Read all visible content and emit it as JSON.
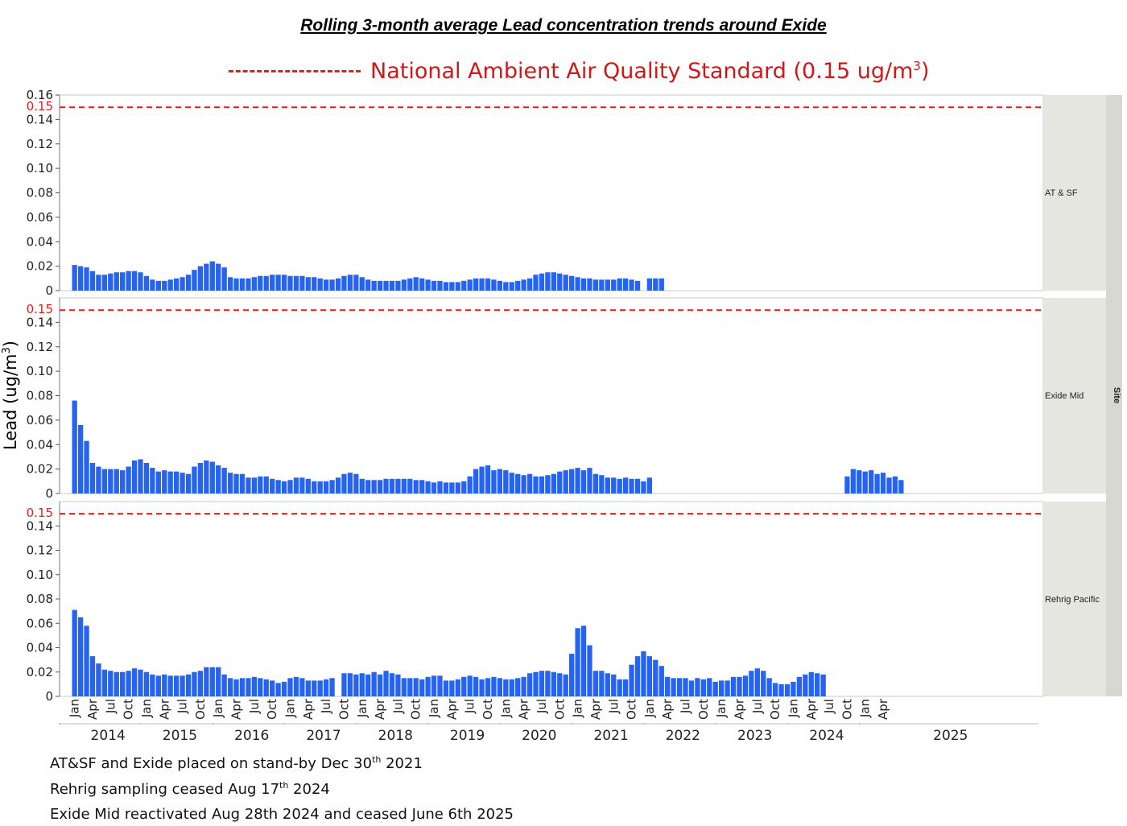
{
  "chart_data": {
    "type": "bar",
    "title": "Rolling 3-month average Lead concentration trends around Exide",
    "legend": {
      "reference_line_label": "National Ambient Air Quality Standard (0.15 ug/m",
      "reference_line_unit_sup": "3",
      "reference_line_close": ")"
    },
    "reference_line": {
      "value": 0.15,
      "label": "0.15",
      "style": "dashed",
      "color": "#e81c1c"
    },
    "ylabel": "Lead (ug/m",
    "ylabel_sup": "3",
    "ylabel_close": ")",
    "facet_label": "Site",
    "bar_color": "#2563f0",
    "panels": [
      {
        "name": "AT & SF",
        "ylim": [
          0,
          0.16
        ],
        "yticks": [
          "0",
          "0.02",
          "0.04",
          "0.06",
          "0.08",
          "0.10",
          "0.12",
          "0.14",
          "0.16"
        ],
        "start": "2014-01",
        "values": [
          0.021,
          0.02,
          0.019,
          0.016,
          0.013,
          0.013,
          0.014,
          0.015,
          0.015,
          0.016,
          0.016,
          0.015,
          0.012,
          0.009,
          0.008,
          0.008,
          0.009,
          0.01,
          0.011,
          0.013,
          0.017,
          0.02,
          0.022,
          0.024,
          0.022,
          0.019,
          0.011,
          0.01,
          0.01,
          0.01,
          0.011,
          0.012,
          0.012,
          0.013,
          0.013,
          0.013,
          0.012,
          0.012,
          0.012,
          0.011,
          0.011,
          0.01,
          0.009,
          0.009,
          0.01,
          0.012,
          0.013,
          0.013,
          0.011,
          0.009,
          0.008,
          0.008,
          0.008,
          0.008,
          0.008,
          0.009,
          0.01,
          0.011,
          0.01,
          0.009,
          0.008,
          0.008,
          0.007,
          0.007,
          0.007,
          0.008,
          0.009,
          0.01,
          0.01,
          0.01,
          0.009,
          0.008,
          0.007,
          0.007,
          0.008,
          0.009,
          0.01,
          0.013,
          0.014,
          0.015,
          0.015,
          0.014,
          0.013,
          0.012,
          0.011,
          0.01,
          0.01,
          0.009,
          0.009,
          0.009,
          0.009,
          0.01,
          0.01,
          0.009,
          0.008,
          null,
          0.01,
          0.01,
          0.01
        ]
      },
      {
        "name": "Exide Mid",
        "ylim": [
          0,
          0.16
        ],
        "yticks": [
          "0",
          "0.02",
          "0.04",
          "0.06",
          "0.08",
          "0.10",
          "0.12",
          "0.14"
        ],
        "start": "2014-01",
        "values": [
          0.076,
          0.056,
          0.043,
          0.025,
          0.022,
          0.02,
          0.02,
          0.02,
          0.019,
          0.022,
          0.027,
          0.028,
          0.025,
          0.021,
          0.018,
          0.019,
          0.018,
          0.018,
          0.017,
          0.016,
          0.022,
          0.025,
          0.027,
          0.026,
          0.023,
          0.021,
          0.017,
          0.016,
          0.016,
          0.013,
          0.013,
          0.014,
          0.014,
          0.012,
          0.011,
          0.01,
          0.011,
          0.013,
          0.013,
          0.012,
          0.01,
          0.01,
          0.01,
          0.011,
          0.013,
          0.016,
          0.017,
          0.016,
          0.012,
          0.011,
          0.011,
          0.011,
          0.012,
          0.012,
          0.012,
          0.012,
          0.012,
          0.011,
          0.011,
          0.01,
          0.009,
          0.01,
          0.009,
          0.009,
          0.009,
          0.01,
          0.014,
          0.02,
          0.022,
          0.023,
          0.019,
          0.02,
          0.019,
          0.017,
          0.016,
          0.015,
          0.016,
          0.014,
          0.014,
          0.015,
          0.016,
          0.018,
          0.019,
          0.02,
          0.021,
          0.019,
          0.021,
          0.016,
          0.015,
          0.013,
          0.013,
          0.012,
          0.013,
          0.012,
          0.012,
          0.01,
          0.013,
          null,
          null,
          null,
          null,
          null,
          null,
          null,
          null,
          null,
          null,
          null,
          null,
          null,
          null,
          null,
          null,
          null,
          null,
          null,
          null,
          null,
          null,
          null,
          null,
          null,
          null,
          null,
          null,
          null,
          null,
          null,
          null,
          0.014,
          0.02,
          0.019,
          0.018,
          0.019,
          0.016,
          0.017,
          0.013,
          0.014,
          0.011
        ]
      },
      {
        "name": "Rehrig Pacific",
        "ylim": [
          0,
          0.16
        ],
        "yticks": [
          "0",
          "0.02",
          "0.04",
          "0.06",
          "0.08",
          "0.10",
          "0.12",
          "0.14"
        ],
        "start": "2014-01",
        "values": [
          0.071,
          0.065,
          0.058,
          0.033,
          0.027,
          0.022,
          0.021,
          0.02,
          0.02,
          0.021,
          0.023,
          0.022,
          0.02,
          0.018,
          0.017,
          0.018,
          0.017,
          0.017,
          0.017,
          0.018,
          0.02,
          0.021,
          0.024,
          0.024,
          0.024,
          0.018,
          0.015,
          0.014,
          0.015,
          0.015,
          0.016,
          0.015,
          0.014,
          0.013,
          0.011,
          0.012,
          0.015,
          0.016,
          0.015,
          0.013,
          0.013,
          0.013,
          0.014,
          0.015,
          null,
          0.019,
          0.019,
          0.018,
          0.019,
          0.018,
          0.02,
          0.018,
          0.021,
          0.019,
          0.018,
          0.015,
          0.015,
          0.015,
          0.014,
          0.016,
          0.017,
          0.017,
          0.013,
          0.013,
          0.014,
          0.016,
          0.017,
          0.016,
          0.014,
          0.015,
          0.016,
          0.015,
          0.014,
          0.014,
          0.015,
          0.016,
          0.019,
          0.02,
          0.021,
          0.021,
          0.02,
          0.019,
          0.018,
          0.035,
          0.056,
          0.058,
          0.042,
          0.021,
          0.021,
          0.019,
          0.018,
          0.014,
          0.014,
          0.026,
          0.033,
          0.037,
          0.033,
          0.03,
          0.025,
          0.016,
          0.015,
          0.015,
          0.015,
          0.013,
          0.015,
          0.014,
          0.015,
          0.012,
          0.013,
          0.013,
          0.016,
          0.016,
          0.017,
          0.021,
          0.023,
          0.021,
          0.015,
          0.011,
          0.01,
          0.01,
          0.012,
          0.016,
          0.018,
          0.02,
          0.019,
          0.018
        ]
      }
    ],
    "x_month_ticks": [
      "Jan",
      "Apr",
      "Jul",
      "Oct"
    ],
    "last_year_month_ticks": [
      "Jan",
      "Apr"
    ],
    "x_years": [
      "2014",
      "2015",
      "2016",
      "2017",
      "2018",
      "2019",
      "2020",
      "2021",
      "2022",
      "2023",
      "2024",
      "2025"
    ]
  },
  "notes": [
    {
      "pre": "AT&SF and Exide placed on stand-by Dec 30",
      "sup": "th",
      "post": " 2021"
    },
    {
      "pre": "Rehrig sampling ceased Aug 17",
      "sup": "th",
      "post": " 2024"
    },
    {
      "pre": "Exide Mid reactivated Aug 28th 2024 and ceased June 6th 2025",
      "sup": "",
      "post": ""
    }
  ]
}
